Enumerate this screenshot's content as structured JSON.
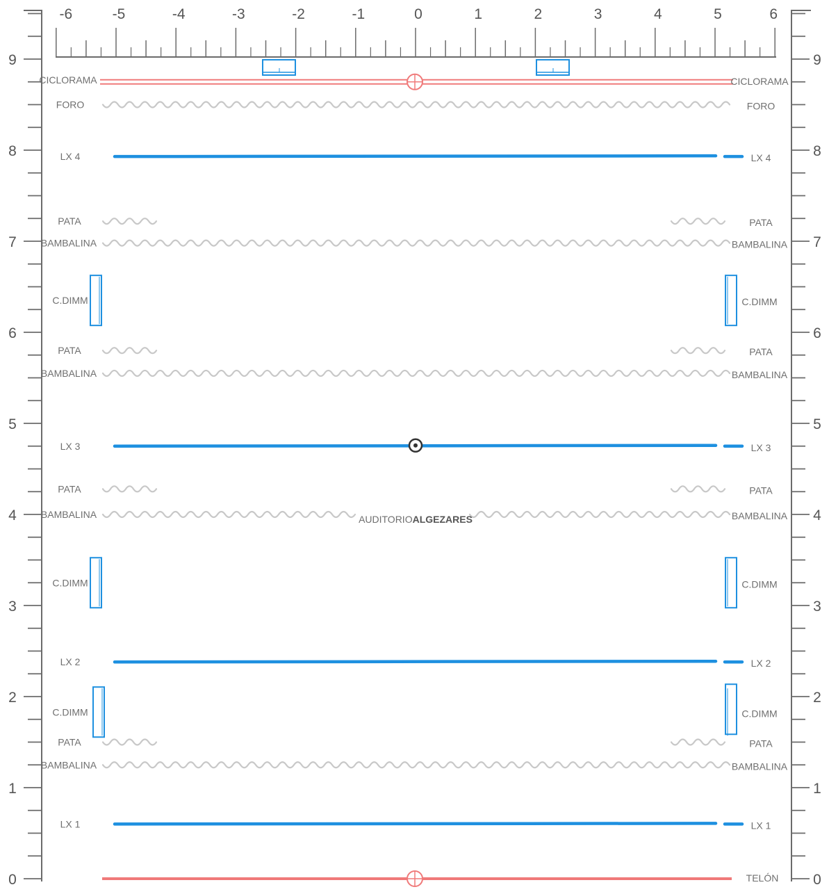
{
  "colors": {
    "ruler": "#6b6b6b",
    "drape": "#c8c8c8",
    "lx": "#1e90e0",
    "cyc": "#f07a7a",
    "text": "#6f6f6f"
  },
  "ruler_x": {
    "labels": [
      "-6",
      "-5",
      "-4",
      "-3",
      "-2",
      "-1",
      "0",
      "1",
      "2",
      "3",
      "4",
      "5",
      "6"
    ],
    "min": -6,
    "max": 6
  },
  "ruler_y": {
    "labels": [
      "0",
      "1",
      "2",
      "3",
      "4",
      "5",
      "6",
      "7",
      "8",
      "9"
    ],
    "min": 0,
    "max": 9
  },
  "title": {
    "prefix": "AUDITORIO",
    "name": "ALGEZARES"
  },
  "cyclorama": {
    "label": "CICLORAMA",
    "y": 8.75
  },
  "foro": {
    "label": "FORO",
    "y": 8.5
  },
  "telon": {
    "label": "TELÓN",
    "y": 0
  },
  "bars": [
    {
      "label": "LX 4",
      "y": 7.93
    },
    {
      "label": "LX 3",
      "y": 4.75
    },
    {
      "label": "LX 2",
      "y": 2.38
    },
    {
      "label": "LX 1",
      "y": 0.6
    }
  ],
  "bambalinas": [
    {
      "label": "BAMBALINA",
      "y": 6.98
    },
    {
      "label": "BAMBALINA",
      "y": 5.55
    },
    {
      "label": "BAMBALINA",
      "y": 4.0
    },
    {
      "label": "BAMBALINA",
      "y": 1.25
    }
  ],
  "patas": [
    {
      "label": "PATA",
      "y": 7.22
    },
    {
      "label": "PATA",
      "y": 5.8
    },
    {
      "label": "PATA",
      "y": 4.28
    },
    {
      "label": "PATA",
      "y": 1.5
    }
  ],
  "dimmers": [
    {
      "label": "C.DIMM",
      "y": 6.35
    },
    {
      "label": "C.DIMM",
      "y": 3.25
    },
    {
      "label": "C.DIMM",
      "y": 1.83
    }
  ]
}
